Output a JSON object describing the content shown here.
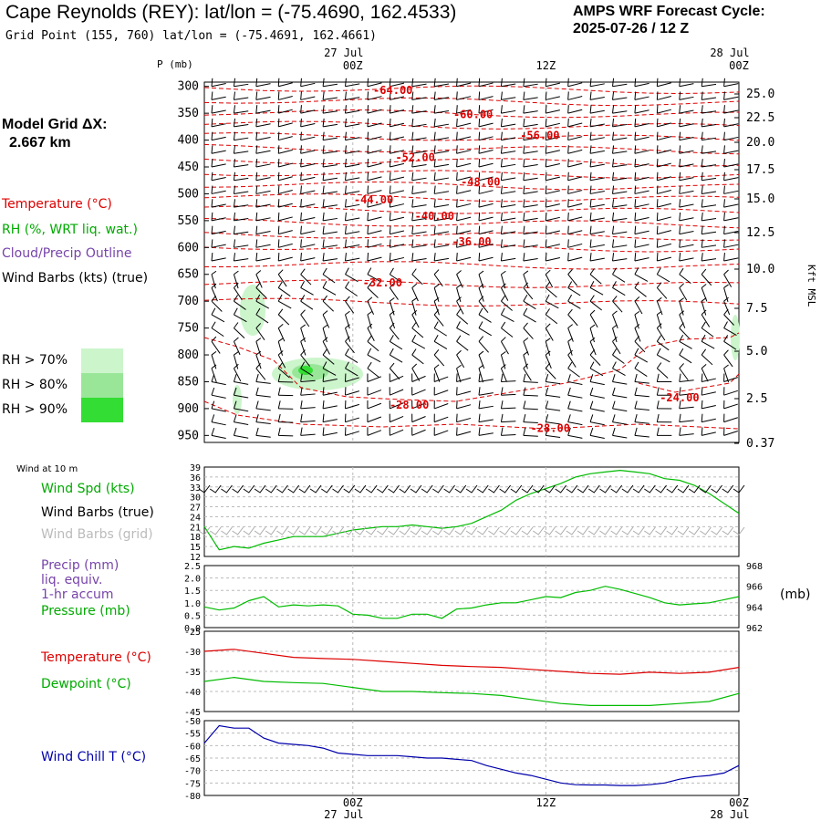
{
  "header": {
    "title": "Cape Reynolds (REY):  lat/lon = (-75.4690, 162.4533)",
    "subtitle": "Grid Point (155, 760) lat/lon = (-75.4691, 162.4661)",
    "cycle_line1": "AMPS WRF Forecast Cycle:",
    "cycle_line2": "2025-07-26 / 12  Z"
  },
  "left_panel": {
    "model_grid_label": "Model Grid ΔX:",
    "model_grid_value": "2.667 km",
    "temperature_label": "Temperature (°C)",
    "rh_label": "RH (%, WRT liq. wat.)",
    "cloud_label": "Cloud/Precip Outline",
    "wind_label": "Wind Barbs (kts) (true)",
    "rh_legend": [
      "RH > 70%",
      "RH > 80%",
      "RH > 90%"
    ]
  },
  "colors": {
    "temperature": "#dd0000",
    "dewpoint": "#00bb00",
    "windchill": "#0000aa",
    "rh70": "#ccf5cc",
    "rh80": "#99e699",
    "rh90": "#33dd33",
    "cloud": "#7744aa",
    "grid_barbs": "#aaaaaa"
  },
  "time_axis": {
    "top_labels": [
      {
        "date": "27 Jul",
        "time": "00Z"
      },
      {
        "date": "",
        "time": "12Z"
      },
      {
        "date": "28 Jul",
        "time": "00Z"
      }
    ],
    "bottom_labels": [
      {
        "time": "00Z",
        "date": "27 Jul"
      },
      {
        "time": "12Z",
        "date": ""
      },
      {
        "time": "00Z",
        "date": "28 Jul"
      }
    ]
  },
  "bottom_panels": {
    "wind_at_10m": "Wind at 10 m",
    "wind_spd_label": "Wind Spd (kts)",
    "wind_barbs_true_label": "Wind Barbs (true)",
    "wind_barbs_grid_label": "Wind Barbs (grid)",
    "precip_label_1": "Precip (mm)",
    "precip_label_2": "liq. equiv.",
    "precip_label_3": "1-hr accum",
    "pressure_label": "Pressure (mb)",
    "pressure_unit": "(mb)",
    "temperature_label": "Temperature (°C)",
    "dewpoint_label": "Dewpoint (°C)",
    "windchill_label": "Wind Chill T (°C)"
  },
  "chart_data": [
    {
      "type": "line",
      "panel": "cross-section",
      "xlabel": "",
      "ylabel": "P (mb)",
      "y_ticks_left": [
        "300",
        "350",
        "400",
        "450",
        "500",
        "550",
        "600",
        "650",
        "700",
        "750",
        "800",
        "850",
        "900",
        "950"
      ],
      "y_ticks_right": [
        "25.0",
        "22.5",
        "20.0",
        "17.5",
        "15.0",
        "12.5",
        "10.0",
        "7.5",
        "5.0",
        "2.5",
        "0.37"
      ],
      "right_axis_label": "Kft MSL",
      "ylim": [
        963,
        292
      ],
      "x_hours": [
        0,
        36
      ],
      "isotherm_labels": [
        {
          "text": "-64.00",
          "hour": 12.7,
          "p": 307
        },
        {
          "text": "-60.00",
          "hour": 18.1,
          "p": 352
        },
        {
          "text": "-56.00",
          "hour": 22.6,
          "p": 391
        },
        {
          "text": "-52.00",
          "hour": 14.2,
          "p": 432
        },
        {
          "text": "-48.00",
          "hour": 18.6,
          "p": 478
        },
        {
          "text": "-44.00",
          "hour": 11.4,
          "p": 511
        },
        {
          "text": "-40.00",
          "hour": 15.5,
          "p": 542
        },
        {
          "text": "-36.00",
          "hour": 18.0,
          "p": 589
        },
        {
          "text": "-32.00",
          "hour": 12.0,
          "p": 666
        },
        {
          "text": "-28.00",
          "hour": 13.8,
          "p": 893
        },
        {
          "text": "-28.00",
          "hour": 23.3,
          "p": 937
        },
        {
          "text": "-24.00",
          "hour": 32.0,
          "p": 880
        }
      ]
    },
    {
      "type": "line",
      "panel": "wind-10m",
      "series": [],
      "hours": [
        0,
        1,
        2,
        3,
        4,
        5,
        6,
        7,
        8,
        9,
        10,
        11,
        12,
        13,
        14,
        15,
        16,
        17,
        18,
        19,
        20,
        21,
        22,
        23,
        24,
        25,
        26,
        27,
        28,
        29,
        30,
        31,
        32,
        33,
        34,
        35,
        36
      ],
      "wind_speed_kts": [
        21,
        14,
        15,
        14.5,
        16,
        17,
        18,
        18,
        18,
        19,
        20,
        20.5,
        21,
        21,
        21.5,
        21,
        20.5,
        21,
        22,
        24,
        26,
        29,
        31,
        32.5,
        34,
        36,
        37,
        37.5,
        38,
        37.5,
        37,
        35.5,
        35,
        33.5,
        31,
        28,
        25
      ],
      "y_ticks": [
        "39",
        "36",
        "33",
        "30",
        "27",
        "24",
        "21",
        "18",
        "15",
        "12"
      ],
      "ylim": [
        12,
        39
      ]
    },
    {
      "type": "line",
      "panel": "pressure",
      "series": [],
      "hours": [
        0,
        1,
        2,
        3,
        4,
        5,
        6,
        7,
        8,
        9,
        10,
        11,
        12,
        13,
        14,
        15,
        16,
        17,
        18,
        19,
        20,
        21,
        22,
        23,
        24,
        25,
        26,
        27,
        28,
        29,
        30,
        31,
        32,
        33,
        34,
        35,
        36
      ],
      "pressure_mb": [
        964,
        963.7,
        963.9,
        964.6,
        965,
        964,
        964.2,
        964.1,
        964.2,
        964.1,
        963.3,
        963.2,
        962.9,
        962.9,
        963.3,
        963.3,
        962.9,
        963.8,
        963.9,
        964.2,
        964.4,
        964.4,
        964.7,
        965,
        964.9,
        965.4,
        965.6,
        966,
        965.7,
        965.3,
        964.9,
        964.4,
        964.2,
        964.3,
        964.4,
        964.7,
        965
      ],
      "y_ticks_left": [
        "2.5",
        "2.0",
        "1.5",
        "1.0",
        "0.5",
        "0.0"
      ],
      "y_ticks_right": [
        "968",
        "966",
        "964",
        "962"
      ],
      "ylim": [
        962,
        968
      ]
    },
    {
      "type": "line",
      "panel": "temperature",
      "series": [],
      "hours": [
        0,
        2,
        4,
        6,
        8,
        10,
        12,
        14,
        16,
        18,
        20,
        22,
        24,
        26,
        28,
        30,
        32,
        34,
        36
      ],
      "temperature_c": [
        -30,
        -29.5,
        -30.5,
        -31.5,
        -31.8,
        -32,
        -32.5,
        -33,
        -33.5,
        -33.8,
        -34,
        -34.5,
        -35,
        -35.5,
        -35.7,
        -35.2,
        -35.5,
        -35.2,
        -34
      ],
      "dewpoint_c": [
        -37.5,
        -36.5,
        -37.5,
        -37.8,
        -38,
        -39,
        -40,
        -40,
        -40.3,
        -40.5,
        -41,
        -42,
        -43,
        -43.5,
        -43.5,
        -43.5,
        -43,
        -42.5,
        -40.5
      ],
      "y_ticks": [
        "-25",
        "-30",
        "-35",
        "-40",
        "-45"
      ],
      "ylim": [
        -45,
        -25
      ]
    },
    {
      "type": "line",
      "panel": "windchill",
      "series": [],
      "hours": [
        0,
        1,
        2,
        3,
        4,
        5,
        6,
        7,
        8,
        9,
        10,
        11,
        12,
        13,
        14,
        15,
        16,
        17,
        18,
        19,
        20,
        21,
        22,
        23,
        24,
        25,
        26,
        27,
        28,
        29,
        30,
        31,
        32,
        33,
        34,
        35,
        36
      ],
      "windchill_c": [
        -59,
        -52,
        -53,
        -53,
        -57,
        -59,
        -59.5,
        -60,
        -61,
        -63,
        -63.5,
        -64,
        -64,
        -64,
        -64.5,
        -65,
        -65,
        -65.5,
        -66,
        -68,
        -69.5,
        -71,
        -72,
        -73.5,
        -75,
        -75.7,
        -75.8,
        -75.8,
        -76,
        -76,
        -75.7,
        -75,
        -73.5,
        -72.5,
        -72,
        -71,
        -68
      ],
      "y_ticks": [
        "-50",
        "-55",
        "-60",
        "-65",
        "-70",
        "-75",
        "-80"
      ],
      "ylim": [
        -80,
        -50
      ]
    }
  ]
}
